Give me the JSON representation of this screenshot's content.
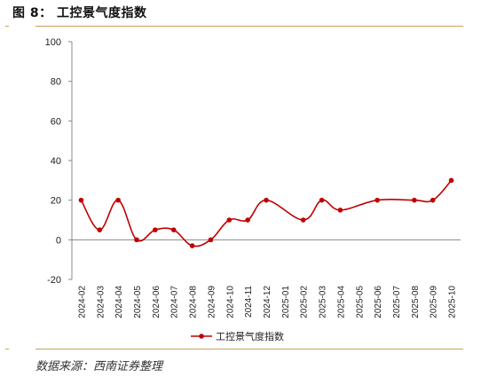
{
  "figure": {
    "title": "图 8： 工控景气度指数",
    "source": "数据来源：西南证券整理"
  },
  "chart_data": {
    "type": "line",
    "title": "",
    "xlabel": "",
    "ylabel": "",
    "ylim": [
      -20,
      100
    ],
    "yticks": [
      -20,
      0,
      20,
      40,
      60,
      80,
      100
    ],
    "grid": false,
    "legend_position": "bottom",
    "categories": [
      "2024-02",
      "2024-03",
      "2024-04",
      "2024-05",
      "2024-06",
      "2024-07",
      "2024-08",
      "2024-09",
      "2024-10",
      "2024-11",
      "2024-12",
      "2025-01",
      "2025-02",
      "2025-03",
      "2025-04",
      "2025-05",
      "2025-06",
      "2025-07",
      "2025-08",
      "2025-09",
      "2025-10"
    ],
    "series": [
      {
        "name": "工控景气度指数",
        "color": "#c00000",
        "values": [
          20,
          5,
          20,
          0,
          5,
          5,
          -3,
          0,
          10,
          10,
          20,
          null,
          10,
          20,
          15,
          null,
          20,
          null,
          20,
          20,
          30
        ]
      }
    ]
  }
}
